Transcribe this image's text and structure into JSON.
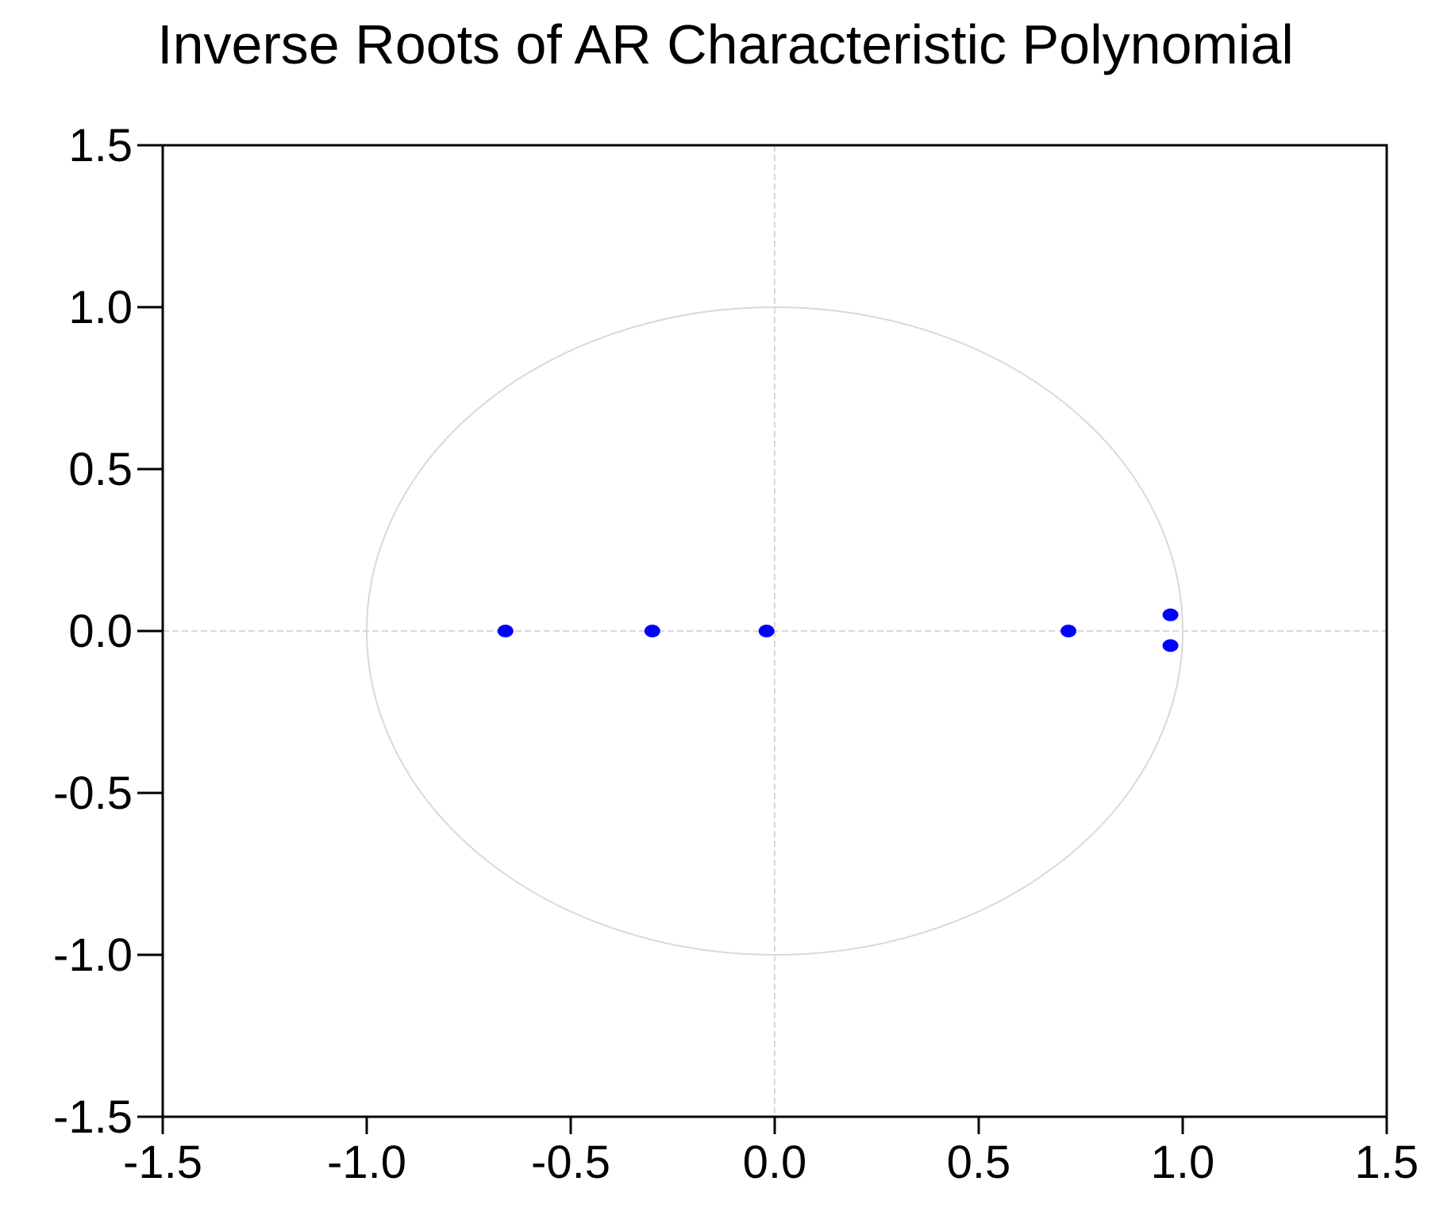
{
  "chart_data": {
    "type": "scatter",
    "title": "Inverse Roots of AR Characteristic Polynomial",
    "xlabel": "",
    "ylabel": "",
    "xlim": [
      -1.5,
      1.5
    ],
    "ylim": [
      -1.5,
      1.5
    ],
    "x_ticks": [
      "-1.5",
      "-1.0",
      "-0.5",
      "0.0",
      "0.5",
      "1.0",
      "1.5"
    ],
    "y_ticks": [
      "1.5",
      "1.0",
      "0.5",
      "0.0",
      "-0.5",
      "-1.0",
      "-1.5"
    ],
    "grid": "zero lines only",
    "reference_shape": "unit circle (radius 1)",
    "series": [
      {
        "points": [
          {
            "x": -0.66,
            "y": 0.0
          },
          {
            "x": -0.3,
            "y": 0.0
          },
          {
            "x": -0.02,
            "y": 0.0
          },
          {
            "x": 0.72,
            "y": 0.0
          },
          {
            "x": 0.97,
            "y": 0.05
          },
          {
            "x": 0.97,
            "y": -0.045
          }
        ]
      }
    ],
    "colors": {
      "points": "#0000ff",
      "reference": "#d9d9d9",
      "axes": "#000000"
    }
  }
}
